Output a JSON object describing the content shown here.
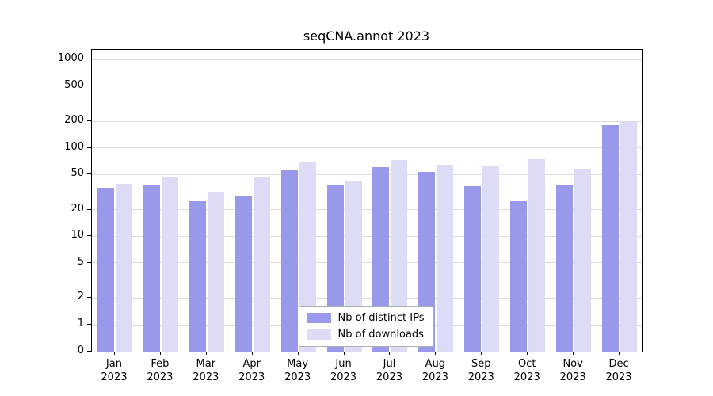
{
  "title": "seqCNA.annot 2023",
  "chart_data": {
    "type": "bar",
    "title": "seqCNA.annot 2023",
    "categories": [
      {
        "month": "Jan",
        "year": "2023"
      },
      {
        "month": "Feb",
        "year": "2023"
      },
      {
        "month": "Mar",
        "year": "2023"
      },
      {
        "month": "Apr",
        "year": "2023"
      },
      {
        "month": "May",
        "year": "2023"
      },
      {
        "month": "Jun",
        "year": "2023"
      },
      {
        "month": "Jul",
        "year": "2023"
      },
      {
        "month": "Aug",
        "year": "2023"
      },
      {
        "month": "Sep",
        "year": "2023"
      },
      {
        "month": "Oct",
        "year": "2023"
      },
      {
        "month": "Nov",
        "year": "2023"
      },
      {
        "month": "Dec",
        "year": "2023"
      }
    ],
    "series": [
      {
        "name": "Nb of distinct IPs",
        "color": "#9999ec",
        "values": [
          35,
          38,
          25,
          29,
          56,
          38,
          60,
          53,
          37,
          25,
          38,
          180
        ]
      },
      {
        "name": "Nb of downloads",
        "color": "#dcdcf7",
        "values": [
          39,
          46,
          32,
          47,
          70,
          43,
          73,
          65,
          62,
          74,
          57,
          195
        ]
      }
    ],
    "yticks": [
      0,
      1,
      2,
      5,
      10,
      20,
      50,
      100,
      200,
      500,
      1000
    ],
    "yscale": "log",
    "ylim": [
      0,
      1000
    ],
    "xlabel": "",
    "ylabel": "",
    "grid": "horizontal",
    "legend_position": "bottom-center"
  }
}
